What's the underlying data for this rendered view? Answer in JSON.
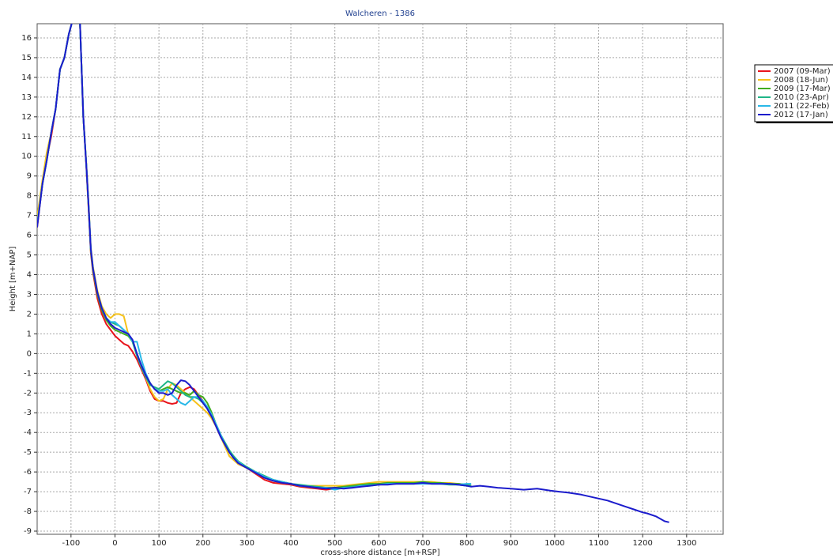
{
  "chart_data": {
    "type": "line",
    "title": "Walcheren - 1386",
    "xlabel": "cross-shore distance [m+RSP]",
    "ylabel": "Height [m+NAP]",
    "x": [
      -177,
      -165,
      -155,
      -145,
      -135,
      -125,
      -115,
      -105,
      -95,
      -88,
      -80,
      -72,
      -65,
      -60,
      -55,
      -50,
      -40,
      -30,
      -20,
      -10,
      0,
      10,
      20,
      30,
      40,
      50,
      60,
      70,
      80,
      90,
      100,
      110,
      120,
      130,
      140,
      150,
      160,
      170,
      180,
      190,
      200,
      210,
      220,
      230,
      240,
      250,
      260,
      270,
      280,
      300,
      320,
      340,
      360,
      380,
      400,
      420,
      440,
      460,
      480,
      500,
      520,
      540,
      560,
      580,
      600,
      620,
      640,
      660,
      680,
      700,
      720,
      740,
      760,
      780,
      800,
      810,
      830,
      850,
      870,
      900,
      930,
      960,
      990,
      1010,
      1030,
      1060,
      1080,
      1100,
      1120,
      1140,
      1160,
      1180,
      1200,
      1210,
      1230,
      1250,
      1260
    ],
    "series": [
      {
        "name": "2007 (09-Mar)",
        "color": "#e8141c",
        "values": [
          6.4,
          8.6,
          9.9,
          11.0,
          12.4,
          14.4,
          15,
          16.2,
          17,
          18,
          17,
          12,
          9.4,
          7.3,
          5.1,
          4.1,
          2.8,
          2.0,
          1.5,
          1.2,
          0.9,
          0.7,
          0.5,
          0.4,
          0.1,
          -0.3,
          -0.8,
          -1.3,
          -1.9,
          -2.3,
          -2.4,
          -2.4,
          -2.5,
          -2.55,
          -2.5,
          -2.0,
          -1.8,
          -1.7,
          -1.8,
          -2.1,
          -2.4,
          -2.8,
          -3.2,
          -3.7,
          -4.2,
          -4.6,
          -5.0,
          -5.3,
          -5.6,
          -5.8,
          -6.1,
          -6.4,
          -6.55,
          -6.6,
          -6.65,
          -6.75,
          -6.8,
          -6.85,
          -6.9,
          -6.85,
          -6.8,
          -6.75,
          -6.7,
          -6.65,
          -6.6,
          -6.6,
          -6.55,
          -6.55,
          -6.55,
          -6.5,
          -6.55,
          -6.55,
          -6.6,
          -6.6,
          -6.65,
          -6.7,
          null,
          null,
          null,
          null,
          null,
          null,
          null,
          null,
          null,
          null,
          null,
          null,
          null,
          null,
          null,
          null,
          null,
          null,
          null,
          null,
          null
        ]
      },
      {
        "name": "2008 (18-Jun)",
        "color": "#f5c21b",
        "values": [
          6.9,
          8.8,
          10.2,
          11.2,
          12.4,
          14.4,
          15,
          16.2,
          17,
          18,
          17,
          12,
          9.6,
          7.6,
          5.4,
          4.4,
          3.2,
          2.4,
          2.0,
          1.8,
          2.0,
          2.0,
          1.9,
          1.0,
          0.6,
          0.0,
          -0.7,
          -1.2,
          -1.8,
          -2.2,
          -2.4,
          -2.3,
          -1.8,
          -1.5,
          -1.6,
          -1.8,
          -2.0,
          -2.2,
          -2.4,
          -2.6,
          -2.8,
          -3.0,
          -3.3,
          -3.7,
          -4.2,
          -4.7,
          -5.2,
          -5.4,
          -5.6,
          -5.8,
          -6.05,
          -6.3,
          -6.45,
          -6.55,
          -6.6,
          -6.7,
          -6.7,
          -6.7,
          -6.7,
          -6.7,
          -6.7,
          -6.65,
          -6.6,
          -6.55,
          -6.5,
          -6.5,
          -6.5,
          -6.5,
          -6.5,
          -6.5,
          -6.5,
          -6.55,
          -6.55,
          -6.6,
          -6.65,
          -6.7,
          null,
          null,
          null,
          null,
          null,
          null,
          null,
          null,
          null,
          null,
          null,
          null,
          null,
          null,
          null,
          null,
          null,
          null,
          null,
          null,
          null
        ]
      },
      {
        "name": "2009 (17-Mar)",
        "color": "#3fad1f",
        "values": [
          6.5,
          8.6,
          9.8,
          11.2,
          12.4,
          14.4,
          15,
          16.2,
          17,
          18,
          17,
          12,
          9.5,
          7.4,
          5.2,
          4.2,
          3.0,
          2.2,
          1.7,
          1.4,
          1.2,
          1.1,
          1.0,
          0.9,
          0.6,
          -0.1,
          -0.6,
          -1.1,
          -1.5,
          -1.8,
          -1.9,
          -1.8,
          -1.7,
          -1.8,
          -1.9,
          -2.0,
          -2.0,
          -2.1,
          -1.9,
          -2.1,
          -2.2,
          -2.5,
          -3.0,
          -3.6,
          -4.1,
          -4.6,
          -5.0,
          -5.3,
          -5.5,
          -5.75,
          -6.0,
          -6.25,
          -6.4,
          -6.5,
          -6.6,
          -6.7,
          -6.75,
          -6.8,
          -6.8,
          -6.8,
          -6.75,
          -6.7,
          -6.65,
          -6.6,
          -6.6,
          -6.55,
          -6.55,
          -6.55,
          -6.55,
          -6.5,
          -6.55,
          -6.55,
          -6.6,
          -6.6,
          -6.65,
          -6.7,
          null,
          null,
          null,
          null,
          null,
          null,
          null,
          null,
          null,
          null,
          null,
          null,
          null,
          null,
          null,
          null,
          null,
          null,
          null,
          null,
          null
        ]
      },
      {
        "name": "2010 (23-Apr)",
        "color": "#1fb587",
        "values": [
          6.5,
          8.6,
          9.8,
          11.2,
          12.4,
          14.4,
          15,
          16.2,
          17,
          18,
          17,
          12,
          9.5,
          7.5,
          5.3,
          4.3,
          3.1,
          2.3,
          1.8,
          1.6,
          1.5,
          1.4,
          1.2,
          1.0,
          0.6,
          -0.1,
          -0.7,
          -1.2,
          -1.6,
          -1.7,
          -1.8,
          -1.6,
          -1.4,
          -1.5,
          -1.7,
          -1.9,
          -2.1,
          -2.2,
          -2.2,
          -2.3,
          -2.5,
          -2.8,
          -3.2,
          -3.6,
          -4.1,
          -4.5,
          -4.9,
          -5.2,
          -5.45,
          -5.75,
          -6.0,
          -6.2,
          -6.4,
          -6.5,
          -6.6,
          -6.65,
          -6.7,
          -6.75,
          -6.8,
          -6.85,
          -6.8,
          -6.75,
          -6.7,
          -6.65,
          -6.65,
          -6.6,
          -6.6,
          -6.6,
          -6.6,
          -6.55,
          -6.6,
          -6.6,
          -6.65,
          -6.65,
          -6.7,
          -6.7,
          null,
          null,
          null,
          null,
          null,
          null,
          null,
          null,
          null,
          null,
          null,
          null,
          null,
          null,
          null,
          null,
          null,
          null,
          null,
          null,
          null
        ]
      },
      {
        "name": "2011 (22-Feb)",
        "color": "#29b8e8",
        "values": [
          6.5,
          8.6,
          9.8,
          11.2,
          12.4,
          14.4,
          15,
          16.2,
          17,
          18,
          17,
          12,
          9.5,
          7.5,
          5.3,
          4.3,
          3.1,
          2.3,
          1.8,
          1.6,
          1.6,
          1.4,
          1.2,
          1.0,
          0.6,
          0.6,
          -0.3,
          -1.0,
          -1.5,
          -1.8,
          -1.9,
          -1.9,
          -1.8,
          -2.1,
          -2.3,
          -2.5,
          -2.6,
          -2.4,
          -2.2,
          -2.2,
          -2.4,
          -2.7,
          -3.1,
          -3.6,
          -4.1,
          -4.6,
          -5.0,
          -5.3,
          -5.5,
          -5.8,
          -6.0,
          -6.25,
          -6.4,
          -6.5,
          -6.6,
          -6.7,
          -6.75,
          -6.8,
          -6.8,
          -6.9,
          -6.8,
          -6.8,
          -6.7,
          -6.7,
          -6.65,
          -6.6,
          -6.6,
          -6.6,
          -6.6,
          -6.6,
          -6.6,
          -6.6,
          -6.6,
          -6.65,
          -6.6,
          -6.6,
          null,
          null,
          null,
          null,
          null,
          null,
          null,
          null,
          null,
          null,
          null,
          null,
          null,
          null,
          null,
          null,
          null,
          null,
          null,
          null,
          null
        ]
      },
      {
        "name": "2012 (17-Jan)",
        "color": "#1c1ccc",
        "values": [
          6.4,
          8.6,
          9.8,
          11.2,
          12.4,
          14.4,
          15,
          16.2,
          17,
          18,
          17,
          12,
          9.5,
          7.5,
          5.3,
          4.3,
          3.1,
          2.3,
          1.8,
          1.5,
          1.3,
          1.2,
          1.1,
          1.0,
          0.7,
          0.0,
          -0.6,
          -1.1,
          -1.5,
          -1.8,
          -2.0,
          -2.0,
          -2.1,
          -2.0,
          -1.6,
          -1.35,
          -1.4,
          -1.6,
          -1.9,
          -2.2,
          -2.5,
          -2.8,
          -3.2,
          -3.7,
          -4.2,
          -4.6,
          -5.0,
          -5.3,
          -5.55,
          -5.8,
          -6.05,
          -6.3,
          -6.45,
          -6.55,
          -6.6,
          -6.7,
          -6.75,
          -6.8,
          -6.85,
          -6.8,
          -6.85,
          -6.8,
          -6.75,
          -6.7,
          -6.65,
          -6.65,
          -6.6,
          -6.6,
          -6.6,
          -6.55,
          -6.6,
          -6.6,
          -6.6,
          -6.65,
          -6.7,
          -6.75,
          -6.7,
          -6.75,
          -6.8,
          -6.85,
          -6.9,
          -6.85,
          -6.95,
          -7.0,
          -7.05,
          -7.15,
          -7.25,
          -7.35,
          -7.45,
          -7.6,
          -7.75,
          -7.9,
          -8.05,
          -8.1,
          -8.25,
          -8.5,
          -8.55
        ]
      }
    ],
    "xlim": [
      -177,
      1383
    ],
    "ylim": [
      -9.16,
      16.72
    ],
    "xticks": [
      -100,
      0,
      100,
      200,
      300,
      400,
      500,
      600,
      700,
      800,
      900,
      1000,
      1100,
      1200,
      1300
    ],
    "yticks": [
      -9,
      -8,
      -7,
      -6,
      -5,
      -4,
      -3,
      -2,
      -1,
      0,
      1,
      2,
      3,
      4,
      5,
      6,
      7,
      8,
      9,
      10,
      11,
      12,
      13,
      14,
      15,
      16
    ],
    "grid": true,
    "legend": "outside-right"
  }
}
